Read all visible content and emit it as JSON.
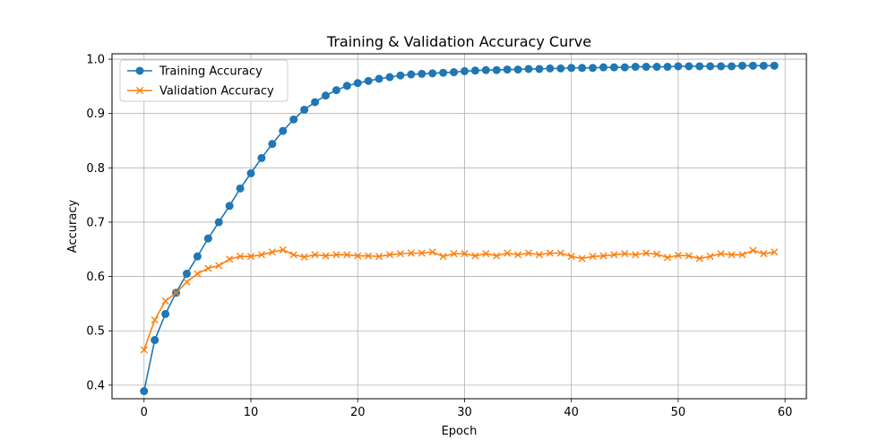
{
  "chart_data": {
    "type": "line",
    "title": "Training & Validation Accuracy Curve",
    "xlabel": "Epoch",
    "ylabel": "Accuracy",
    "xlim": [
      -3,
      62
    ],
    "ylim": [
      0.375,
      1.01
    ],
    "xticks": [
      0,
      10,
      20,
      30,
      40,
      50,
      60
    ],
    "yticks": [
      0.4,
      0.5,
      0.6,
      0.7,
      0.8,
      0.9,
      1.0
    ],
    "ytick_labels": [
      "0.4",
      "0.5",
      "0.6",
      "0.7",
      "0.8",
      "0.9",
      "1.0"
    ],
    "grid": true,
    "legend_position": "top-left",
    "x": [
      0,
      1,
      2,
      3,
      4,
      5,
      6,
      7,
      8,
      9,
      10,
      11,
      12,
      13,
      14,
      15,
      16,
      17,
      18,
      19,
      20,
      21,
      22,
      23,
      24,
      25,
      26,
      27,
      28,
      29,
      30,
      31,
      32,
      33,
      34,
      35,
      36,
      37,
      38,
      39,
      40,
      41,
      42,
      43,
      44,
      45,
      46,
      47,
      48,
      49,
      50,
      51,
      52,
      53,
      54,
      55,
      56,
      57,
      58,
      59
    ],
    "series": [
      {
        "name": "Training Accuracy",
        "color": "#1f77b4",
        "marker": "circle",
        "values": [
          0.389,
          0.483,
          0.531,
          0.57,
          0.605,
          0.637,
          0.67,
          0.7,
          0.73,
          0.762,
          0.79,
          0.818,
          0.844,
          0.868,
          0.889,
          0.907,
          0.921,
          0.933,
          0.943,
          0.951,
          0.956,
          0.96,
          0.964,
          0.967,
          0.97,
          0.972,
          0.973,
          0.974,
          0.975,
          0.976,
          0.978,
          0.979,
          0.98,
          0.98,
          0.981,
          0.981,
          0.982,
          0.982,
          0.983,
          0.983,
          0.984,
          0.984,
          0.984,
          0.985,
          0.985,
          0.985,
          0.986,
          0.986,
          0.986,
          0.986,
          0.987,
          0.987,
          0.987,
          0.987,
          0.987,
          0.987,
          0.988,
          0.988,
          0.988,
          0.988
        ]
      },
      {
        "name": "Validation Accuracy",
        "color": "#ff7f0e",
        "marker": "x",
        "values": [
          0.465,
          0.52,
          0.555,
          0.57,
          0.59,
          0.605,
          0.615,
          0.62,
          0.632,
          0.637,
          0.637,
          0.64,
          0.645,
          0.649,
          0.64,
          0.636,
          0.64,
          0.638,
          0.64,
          0.64,
          0.638,
          0.638,
          0.637,
          0.64,
          0.642,
          0.643,
          0.643,
          0.645,
          0.637,
          0.642,
          0.642,
          0.638,
          0.642,
          0.638,
          0.643,
          0.64,
          0.643,
          0.64,
          0.643,
          0.643,
          0.637,
          0.633,
          0.637,
          0.638,
          0.64,
          0.642,
          0.64,
          0.643,
          0.641,
          0.635,
          0.639,
          0.638,
          0.633,
          0.637,
          0.642,
          0.64,
          0.64,
          0.648,
          0.642,
          0.645
        ]
      }
    ]
  }
}
